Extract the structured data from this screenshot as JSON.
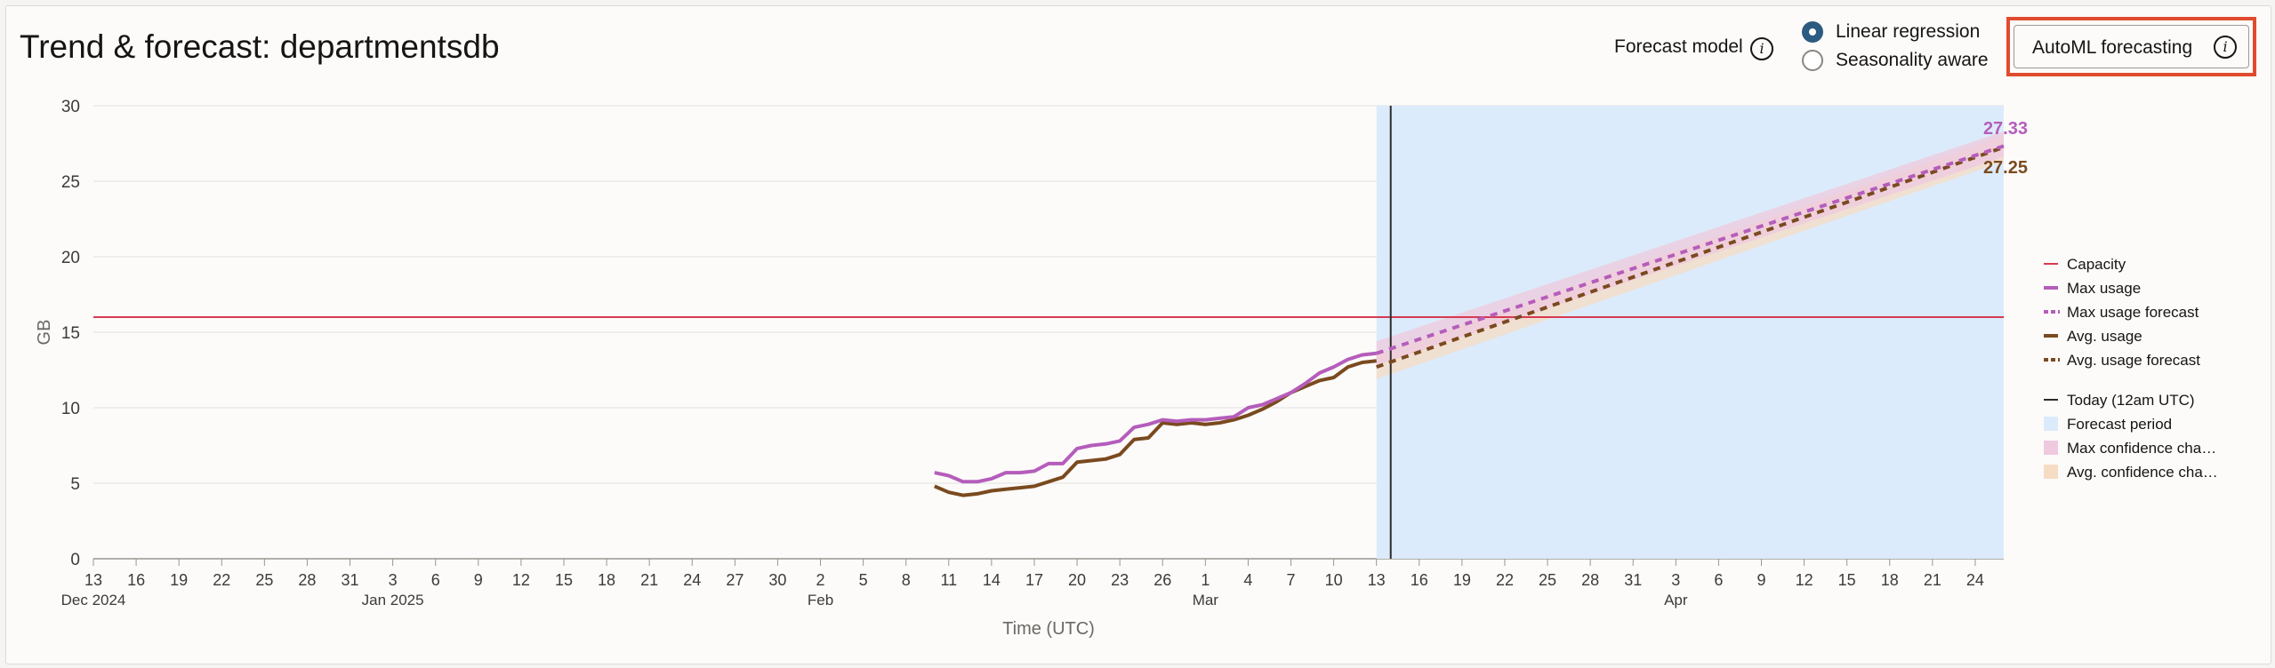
{
  "header": {
    "title": "Trend & forecast: departmentsdb",
    "forecast_model_label": "Forecast model",
    "radio_options": [
      {
        "label": "Linear regression",
        "checked": true
      },
      {
        "label": "Seasonality aware",
        "checked": false
      }
    ],
    "automl_button_label": "AutoML forecasting",
    "info_glyph": "i"
  },
  "colors": {
    "capacity": "#d63b4f",
    "max_usage": "#b55dbb",
    "avg_usage": "#7a4a1f",
    "today_line": "#2b2b2b",
    "forecast_period": "#dcebfb",
    "max_confidence": "#efc9de",
    "avg_confidence": "#f7dcc4",
    "highlight_border": "#e04b2e"
  },
  "chart_data": {
    "type": "line",
    "ylabel": "GB",
    "xlabel": "Time (UTC)",
    "ylim": [
      0,
      30
    ],
    "yticks": [
      0,
      5,
      10,
      15,
      20,
      25,
      30
    ],
    "x_domain": [
      "2024-12-13",
      "2025-04-26"
    ],
    "x_ticks": [
      {
        "date": "2024-12-13",
        "label": "13",
        "sub": "Dec 2024"
      },
      {
        "date": "2024-12-16",
        "label": "16"
      },
      {
        "date": "2024-12-19",
        "label": "19"
      },
      {
        "date": "2024-12-22",
        "label": "22"
      },
      {
        "date": "2024-12-25",
        "label": "25"
      },
      {
        "date": "2024-12-28",
        "label": "28"
      },
      {
        "date": "2024-12-31",
        "label": "31"
      },
      {
        "date": "2025-01-03",
        "label": "3",
        "sub": "Jan 2025"
      },
      {
        "date": "2025-01-06",
        "label": "6"
      },
      {
        "date": "2025-01-09",
        "label": "9"
      },
      {
        "date": "2025-01-12",
        "label": "12"
      },
      {
        "date": "2025-01-15",
        "label": "15"
      },
      {
        "date": "2025-01-18",
        "label": "18"
      },
      {
        "date": "2025-01-21",
        "label": "21"
      },
      {
        "date": "2025-01-24",
        "label": "24"
      },
      {
        "date": "2025-01-27",
        "label": "27"
      },
      {
        "date": "2025-01-30",
        "label": "30"
      },
      {
        "date": "2025-02-02",
        "label": "2",
        "sub": "Feb"
      },
      {
        "date": "2025-02-05",
        "label": "5"
      },
      {
        "date": "2025-02-08",
        "label": "8"
      },
      {
        "date": "2025-02-11",
        "label": "11"
      },
      {
        "date": "2025-02-14",
        "label": "14"
      },
      {
        "date": "2025-02-17",
        "label": "17"
      },
      {
        "date": "2025-02-20",
        "label": "20"
      },
      {
        "date": "2025-02-23",
        "label": "23"
      },
      {
        "date": "2025-02-26",
        "label": "26"
      },
      {
        "date": "2025-03-01",
        "label": "1",
        "sub": "Mar"
      },
      {
        "date": "2025-03-04",
        "label": "4"
      },
      {
        "date": "2025-03-07",
        "label": "7"
      },
      {
        "date": "2025-03-10",
        "label": "10"
      },
      {
        "date": "2025-03-13",
        "label": "13"
      },
      {
        "date": "2025-03-16",
        "label": "16"
      },
      {
        "date": "2025-03-19",
        "label": "19"
      },
      {
        "date": "2025-03-22",
        "label": "22"
      },
      {
        "date": "2025-03-25",
        "label": "25"
      },
      {
        "date": "2025-03-28",
        "label": "28"
      },
      {
        "date": "2025-03-31",
        "label": "31"
      },
      {
        "date": "2025-04-03",
        "label": "3",
        "sub": "Apr"
      },
      {
        "date": "2025-04-06",
        "label": "6"
      },
      {
        "date": "2025-04-09",
        "label": "9"
      },
      {
        "date": "2025-04-12",
        "label": "12"
      },
      {
        "date": "2025-04-15",
        "label": "15"
      },
      {
        "date": "2025-04-18",
        "label": "18"
      },
      {
        "date": "2025-04-21",
        "label": "21"
      },
      {
        "date": "2025-04-24",
        "label": "24"
      }
    ],
    "capacity": 16,
    "today": "2025-03-14",
    "forecast_period": [
      "2025-03-13",
      "2025-04-26"
    ],
    "series": [
      {
        "name": "Max usage",
        "x": [
          "2025-02-10",
          "2025-02-11",
          "2025-02-12",
          "2025-02-13",
          "2025-02-14",
          "2025-02-15",
          "2025-02-16",
          "2025-02-17",
          "2025-02-18",
          "2025-02-19",
          "2025-02-20",
          "2025-02-21",
          "2025-02-22",
          "2025-02-23",
          "2025-02-24",
          "2025-02-25",
          "2025-02-26",
          "2025-02-27",
          "2025-02-28",
          "2025-03-01",
          "2025-03-02",
          "2025-03-03",
          "2025-03-04",
          "2025-03-05",
          "2025-03-06",
          "2025-03-07",
          "2025-03-08",
          "2025-03-09",
          "2025-03-10",
          "2025-03-11",
          "2025-03-12",
          "2025-03-13"
        ],
        "y": [
          5.7,
          5.5,
          5.1,
          5.1,
          5.3,
          5.7,
          5.7,
          5.8,
          6.3,
          6.3,
          7.3,
          7.5,
          7.6,
          7.8,
          8.7,
          8.9,
          9.2,
          9.1,
          9.2,
          9.2,
          9.3,
          9.4,
          10.0,
          10.2,
          10.6,
          11.0,
          11.6,
          12.3,
          12.7,
          13.2,
          13.5,
          13.6
        ]
      },
      {
        "name": "Avg. usage",
        "x": [
          "2025-02-10",
          "2025-02-11",
          "2025-02-12",
          "2025-02-13",
          "2025-02-14",
          "2025-02-15",
          "2025-02-16",
          "2025-02-17",
          "2025-02-18",
          "2025-02-19",
          "2025-02-20",
          "2025-02-21",
          "2025-02-22",
          "2025-02-23",
          "2025-02-24",
          "2025-02-25",
          "2025-02-26",
          "2025-02-27",
          "2025-02-28",
          "2025-03-01",
          "2025-03-02",
          "2025-03-03",
          "2025-03-04",
          "2025-03-05",
          "2025-03-06",
          "2025-03-07",
          "2025-03-08",
          "2025-03-09",
          "2025-03-10",
          "2025-03-11",
          "2025-03-12",
          "2025-03-13"
        ],
        "y": [
          4.8,
          4.4,
          4.2,
          4.3,
          4.5,
          4.6,
          4.7,
          4.8,
          5.1,
          5.4,
          6.4,
          6.5,
          6.6,
          6.9,
          7.9,
          8.0,
          9.0,
          8.9,
          9.0,
          8.9,
          9.0,
          9.2,
          9.5,
          9.9,
          10.4,
          11.0,
          11.4,
          11.8,
          12.0,
          12.7,
          13.0,
          13.1
        ]
      },
      {
        "name": "Max usage forecast",
        "x": [
          "2025-03-13",
          "2025-04-26"
        ],
        "y": [
          13.6,
          27.33
        ],
        "band": [
          [
            12.8,
            14.4
          ],
          [
            26.6,
            28.3
          ]
        ]
      },
      {
        "name": "Avg. usage forecast",
        "x": [
          "2025-03-13",
          "2025-04-26"
        ],
        "y": [
          12.7,
          27.25
        ],
        "band": [
          [
            11.9,
            13.5
          ],
          [
            26.3,
            28.0
          ]
        ]
      }
    ],
    "end_labels": {
      "max": "27.33",
      "avg": "27.25"
    },
    "legend_position": "right",
    "legend": [
      {
        "label": "Capacity",
        "kind": "line",
        "color_key": "capacity"
      },
      {
        "label": "Max usage",
        "kind": "thick",
        "color_key": "max_usage"
      },
      {
        "label": "Max usage forecast",
        "kind": "dash",
        "color_key": "max_usage"
      },
      {
        "label": "Avg. usage",
        "kind": "thick",
        "color_key": "avg_usage"
      },
      {
        "label": "Avg. usage forecast",
        "kind": "dash",
        "color_key": "avg_usage"
      },
      {
        "label": "Today (12am UTC)",
        "kind": "line",
        "color_key": "today_line",
        "gap": true
      },
      {
        "label": "Forecast period",
        "kind": "box",
        "color_key": "forecast_period"
      },
      {
        "label": "Max confidence cha…",
        "kind": "box",
        "color_key": "max_confidence"
      },
      {
        "label": "Avg. confidence cha…",
        "kind": "box",
        "color_key": "avg_confidence"
      }
    ]
  }
}
